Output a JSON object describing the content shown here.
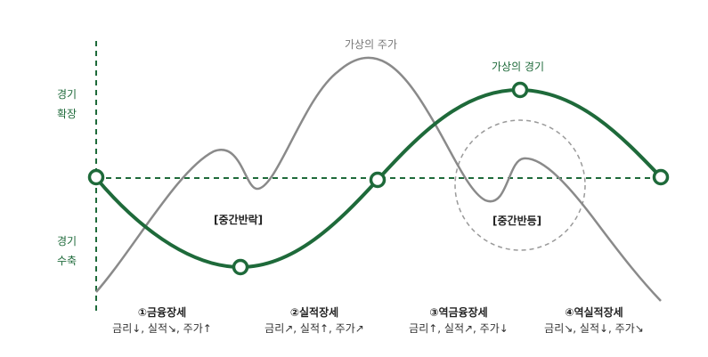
{
  "labels": {
    "stock_curve": "가상의 주가",
    "economy_curve": "가상의 경기",
    "expansion_line1": "경기",
    "expansion_line2": "확장",
    "contraction_line1": "경기",
    "contraction_line2": "수축",
    "mid_rebound": "[중간반락]",
    "mid_bounce": "[중간반등]"
  },
  "phases": [
    {
      "title": "①금융장세",
      "desc": "금리↓, 실적↘, 주가↑"
    },
    {
      "title": "②실적장세",
      "desc": "금리↗, 실적↑, 주가↗"
    },
    {
      "title": "③역금융장세",
      "desc": "금리↑, 실적↗, 주가↓"
    },
    {
      "title": "④역실적장세",
      "desc": "금리↘, 실적↓, 주가↘"
    }
  ],
  "colors": {
    "economy": "#1e6a3a",
    "stock": "#8a8a8a",
    "circle": "#9a9a9a"
  }
}
